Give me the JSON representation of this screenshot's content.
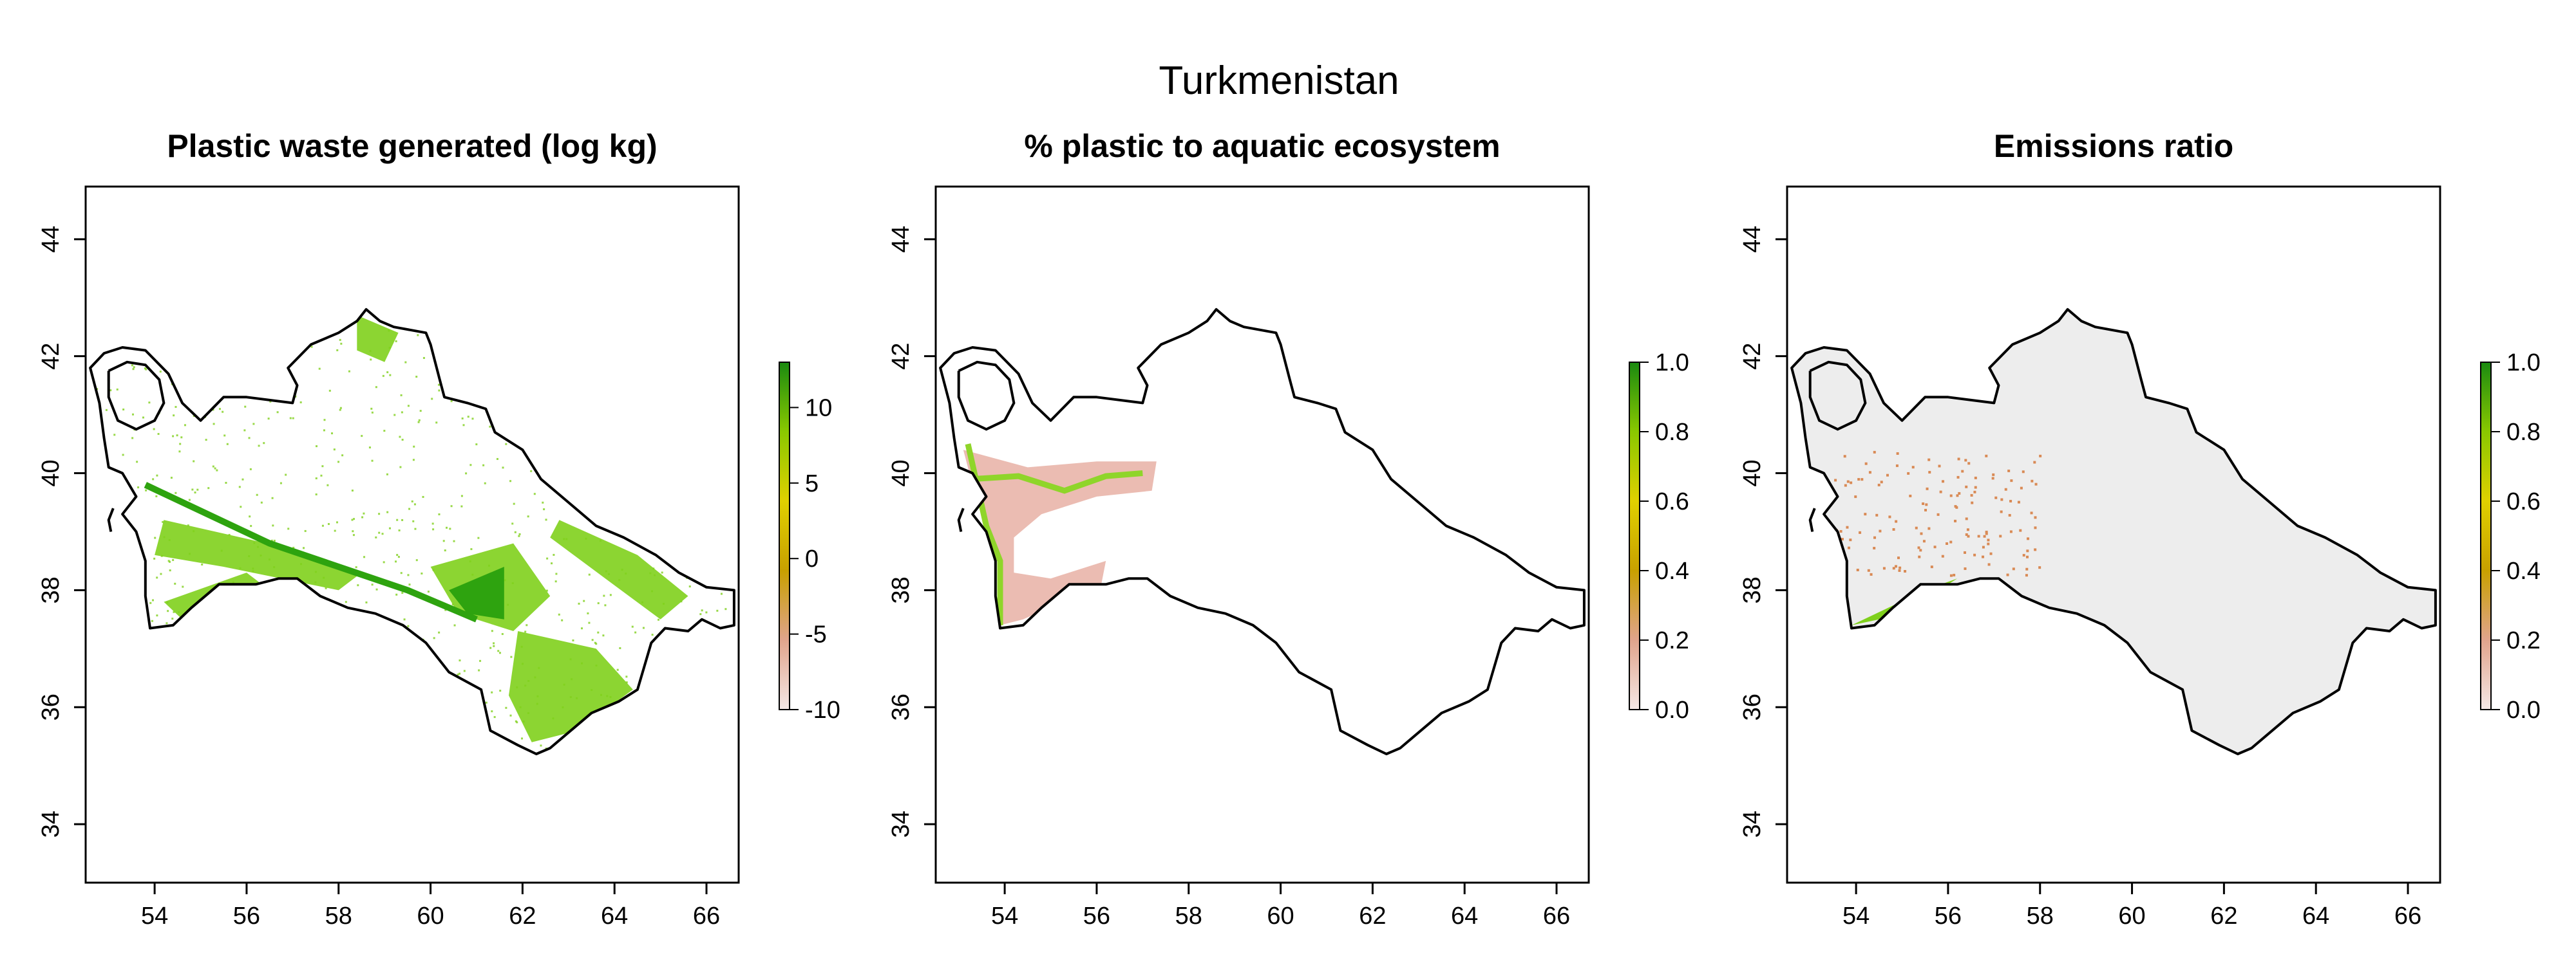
{
  "figure": {
    "title": "Turkmenistan"
  },
  "colors": {
    "outline": "#000000",
    "panel1_fill": "#7fd01c",
    "panel1_dark": "#2ea30f",
    "panel2_halo": "#e8b0a4",
    "panel2_line": "#8fd52a",
    "panel3_fill": "#ededed",
    "panel3_orange": "#d98a55",
    "panel3_green": "#7fd01c",
    "scale_wave": [
      "#f5e8e6",
      "#e0a48c",
      "#c8a000",
      "#e0d000",
      "#8ac800",
      "#1a8a10"
    ],
    "scale_unit": [
      "#f5e8e6",
      "#e0a48c",
      "#c8a000",
      "#e0d000",
      "#8ac800",
      "#1a8a10"
    ]
  },
  "chart_data": [
    {
      "type": "heatmap",
      "title": "Plastic waste generated (log kg)",
      "xlim": [
        52.5,
        66.7
      ],
      "ylim": [
        33.0,
        44.9
      ],
      "x_ticks": [
        54,
        56,
        58,
        60,
        62,
        64,
        66
      ],
      "y_ticks": [
        34,
        36,
        38,
        40,
        42,
        44
      ],
      "legend": {
        "placement": "right",
        "range": [
          -10,
          13
        ],
        "ticks": [
          -10,
          -5,
          0,
          5,
          10
        ]
      },
      "grid": false
    },
    {
      "type": "heatmap",
      "title": "% plastic to aquatic ecosystem",
      "xlim": [
        52.5,
        66.7
      ],
      "ylim": [
        33.0,
        44.9
      ],
      "x_ticks": [
        54,
        56,
        58,
        60,
        62,
        64,
        66
      ],
      "y_ticks": [
        34,
        36,
        38,
        40,
        42,
        44
      ],
      "legend": {
        "placement": "right",
        "range": [
          0.0,
          1.0
        ],
        "ticks": [
          "0.0",
          "0.2",
          "0.4",
          "0.6",
          "0.8",
          "1.0"
        ]
      },
      "grid": false
    },
    {
      "type": "heatmap",
      "title": "Emissions ratio",
      "xlim": [
        52.5,
        66.7
      ],
      "ylim": [
        33.0,
        44.9
      ],
      "x_ticks": [
        54,
        56,
        58,
        60,
        62,
        64,
        66
      ],
      "y_ticks": [
        34,
        36,
        38,
        40,
        42,
        44
      ],
      "legend": {
        "placement": "right",
        "range": [
          0.0,
          1.0
        ],
        "ticks": [
          "0.0",
          "0.2",
          "0.4",
          "0.6",
          "0.8",
          "1.0"
        ]
      },
      "grid": false
    }
  ],
  "map": {
    "country_outline_lonlat": [
      [
        52.6,
        41.8
      ],
      [
        52.9,
        42.05
      ],
      [
        53.3,
        42.15
      ],
      [
        53.8,
        42.1
      ],
      [
        54.3,
        41.7
      ],
      [
        54.6,
        41.2
      ],
      [
        55.0,
        40.9
      ],
      [
        55.5,
        41.3
      ],
      [
        56.0,
        41.3
      ],
      [
        57.0,
        41.2
      ],
      [
        57.1,
        41.5
      ],
      [
        56.9,
        41.8
      ],
      [
        57.4,
        42.2
      ],
      [
        58.0,
        42.4
      ],
      [
        58.4,
        42.6
      ],
      [
        58.6,
        42.8
      ],
      [
        58.9,
        42.6
      ],
      [
        59.2,
        42.5
      ],
      [
        59.9,
        42.4
      ],
      [
        60.0,
        42.2
      ],
      [
        60.2,
        41.6
      ],
      [
        60.3,
        41.3
      ],
      [
        60.8,
        41.2
      ],
      [
        61.2,
        41.1
      ],
      [
        61.4,
        40.7
      ],
      [
        62.0,
        40.4
      ],
      [
        62.4,
        39.9
      ],
      [
        63.0,
        39.5
      ],
      [
        63.6,
        39.1
      ],
      [
        64.2,
        38.9
      ],
      [
        64.9,
        38.6
      ],
      [
        65.4,
        38.3
      ],
      [
        66.0,
        38.05
      ],
      [
        66.6,
        38.0
      ],
      [
        66.6,
        37.4
      ],
      [
        66.3,
        37.35
      ],
      [
        65.9,
        37.5
      ],
      [
        65.6,
        37.3
      ],
      [
        65.1,
        37.35
      ],
      [
        64.8,
        37.1
      ],
      [
        64.5,
        36.3
      ],
      [
        64.1,
        36.1
      ],
      [
        63.5,
        35.9
      ],
      [
        62.9,
        35.5
      ],
      [
        62.6,
        35.3
      ],
      [
        62.3,
        35.2
      ],
      [
        61.9,
        35.35
      ],
      [
        61.3,
        35.6
      ],
      [
        61.1,
        36.3
      ],
      [
        60.4,
        36.6
      ],
      [
        59.9,
        37.1
      ],
      [
        59.4,
        37.4
      ],
      [
        58.8,
        37.6
      ],
      [
        58.2,
        37.7
      ],
      [
        57.6,
        37.9
      ],
      [
        57.1,
        38.2
      ],
      [
        56.7,
        38.2
      ],
      [
        56.2,
        38.1
      ],
      [
        55.4,
        38.1
      ],
      [
        54.8,
        37.7
      ],
      [
        54.4,
        37.4
      ],
      [
        53.9,
        37.35
      ],
      [
        53.8,
        37.9
      ],
      [
        53.8,
        38.5
      ],
      [
        53.6,
        39.0
      ],
      [
        53.3,
        39.3
      ],
      [
        53.6,
        39.6
      ],
      [
        53.3,
        40.0
      ],
      [
        53.0,
        40.1
      ],
      [
        52.9,
        40.6
      ],
      [
        52.8,
        41.2
      ],
      [
        52.6,
        41.8
      ]
    ],
    "bay_outline_lonlat": [
      [
        53.0,
        41.75
      ],
      [
        53.4,
        41.9
      ],
      [
        53.8,
        41.85
      ],
      [
        54.1,
        41.6
      ],
      [
        54.2,
        41.2
      ],
      [
        54.0,
        40.9
      ],
      [
        53.6,
        40.75
      ],
      [
        53.2,
        40.9
      ],
      [
        53.0,
        41.3
      ],
      [
        53.0,
        41.75
      ]
    ],
    "island_lonlat": [
      [
        53.1,
        39.4
      ],
      [
        53.0,
        39.2
      ],
      [
        53.05,
        39.0
      ]
    ]
  }
}
